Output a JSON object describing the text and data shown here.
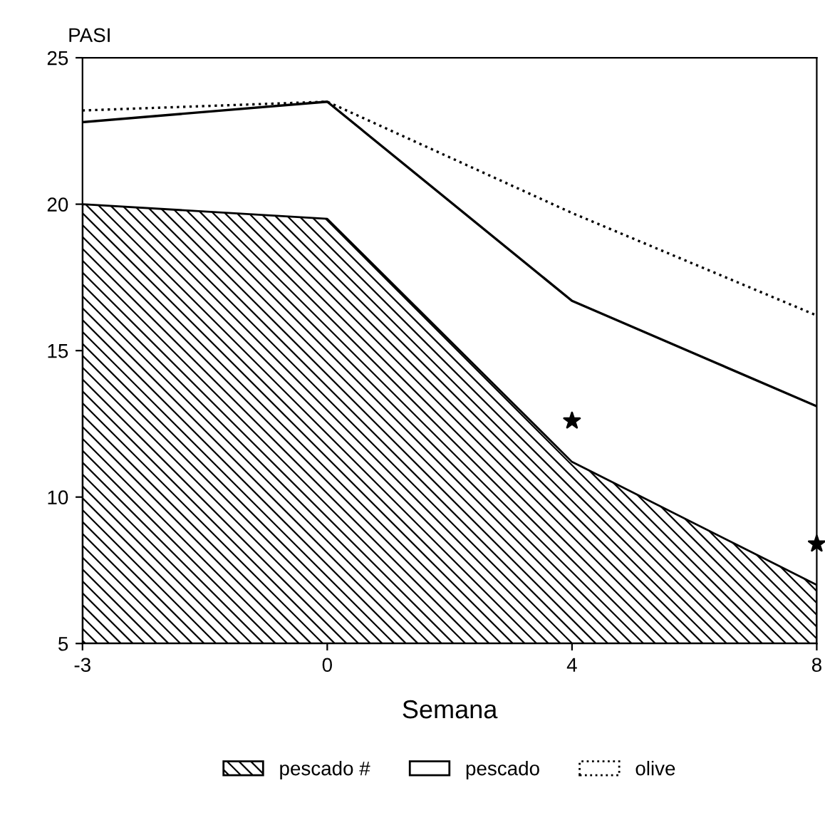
{
  "chart_data": {
    "type": "line",
    "xlabel": "Semana",
    "ylabel": "PASI",
    "categories": [
      "-3",
      "0",
      "4",
      "8"
    ],
    "series": [
      {
        "name": "pescado #",
        "type": "area",
        "color": "#000000",
        "values": [
          20.0,
          19.5,
          11.2,
          7.0
        ]
      },
      {
        "name": "pescado",
        "color": "#000000",
        "line_style": "solid",
        "values": [
          22.8,
          23.5,
          16.7,
          13.1
        ]
      },
      {
        "name": "olive",
        "color": "#000000",
        "line_style": "dotted",
        "values": [
          23.2,
          23.5,
          19.7,
          16.2
        ]
      },
      {
        "type": "scatter",
        "color": "#000000",
        "marker": "star",
        "values": [
          null,
          null,
          12.6,
          8.4
        ]
      }
    ],
    "ylim": [
      5,
      25
    ],
    "yticks": [
      5,
      10,
      15,
      20,
      25
    ],
    "grid": false,
    "legend": "bottom"
  }
}
